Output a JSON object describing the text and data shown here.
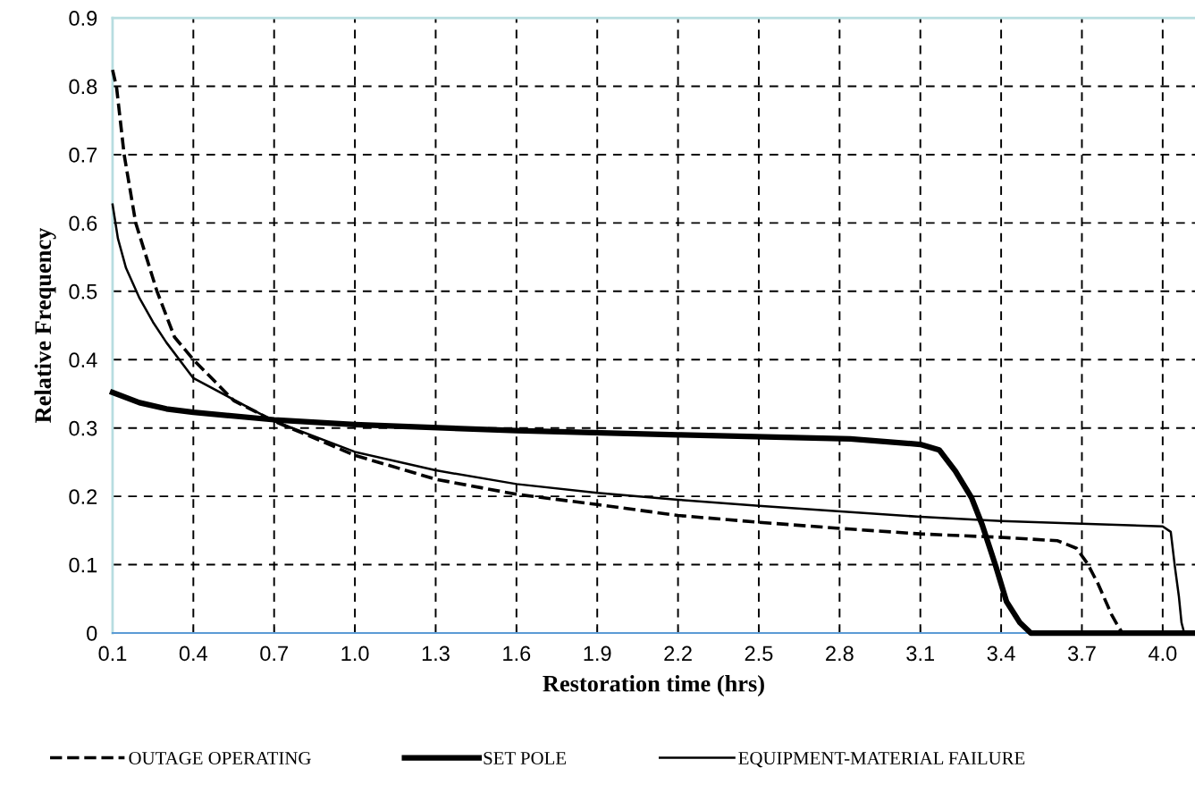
{
  "chart_data": {
    "type": "line",
    "xlabel": "Restoration time (hrs)",
    "ylabel": "Relative Frequency",
    "xlim": [
      0.1,
      4.12
    ],
    "xticks": [
      0.1,
      0.4,
      0.7,
      {
        "value": 1.0,
        "label": "1.0"
      },
      1.3,
      1.6,
      1.9,
      2.2,
      2.5,
      2.8,
      3.1,
      3.4,
      3.7,
      {
        "value": 4.0,
        "label": "4.0"
      }
    ],
    "ylim": [
      0,
      0.9
    ],
    "yticks": [
      0,
      0.1,
      0.2,
      0.3,
      0.4,
      0.5,
      0.6,
      0.7,
      0.8,
      0.9
    ],
    "grid": true,
    "legend": "bottom",
    "marker": "none",
    "series": [
      {
        "name": "OUTAGE OPERATING",
        "color": "#000000",
        "line_style": "dashed",
        "x": [
          0.1,
          0.115,
          0.143,
          0.186,
          0.265,
          0.33,
          0.4,
          0.55,
          0.7,
          1.0,
          1.3,
          1.6,
          1.9,
          2.2,
          2.5,
          2.84,
          3.1,
          3.4,
          3.61,
          3.68,
          3.72,
          3.76,
          3.81,
          3.83,
          3.85
        ],
        "values": [
          0.824,
          0.798,
          0.7,
          0.6,
          0.5,
          0.433,
          0.4,
          0.34,
          0.31,
          0.26,
          0.225,
          0.203,
          0.188,
          0.172,
          0.162,
          0.152,
          0.145,
          0.14,
          0.135,
          0.124,
          0.102,
          0.072,
          0.027,
          0.013,
          0
        ]
      },
      {
        "name": "SET POLE",
        "color": "#000000",
        "line_style": "solid",
        "x": [
          0.1,
          0.2,
          0.3,
          0.4,
          0.7,
          1.0,
          1.6,
          2.2,
          2.84,
          3.1,
          3.17,
          3.23,
          3.29,
          3.33,
          3.38,
          3.42,
          3.47,
          3.51,
          4.12
        ],
        "values": [
          0.352,
          0.337,
          0.328,
          0.323,
          0.312,
          0.305,
          0.296,
          0.29,
          0.284,
          0.276,
          0.268,
          0.237,
          0.198,
          0.158,
          0.098,
          0.046,
          0.015,
          0,
          0
        ]
      },
      {
        "name": "EQUIPMENT-MATERIAL FAILURE",
        "color": "#000000",
        "line_style": "solid",
        "x": [
          0.1,
          0.12,
          0.15,
          0.2,
          0.25,
          0.3,
          0.4,
          0.7,
          1.0,
          1.3,
          1.6,
          1.9,
          2.2,
          2.5,
          2.84,
          3.1,
          3.4,
          3.7,
          4.0,
          4.03,
          4.045,
          4.06,
          4.07,
          4.08,
          4.12
        ],
        "values": [
          0.627,
          0.577,
          0.534,
          0.49,
          0.455,
          0.425,
          0.373,
          0.31,
          0.265,
          0.238,
          0.218,
          0.205,
          0.195,
          0.186,
          0.177,
          0.17,
          0.164,
          0.16,
          0.156,
          0.148,
          0.098,
          0.054,
          0.015,
          0,
          0
        ]
      }
    ]
  }
}
